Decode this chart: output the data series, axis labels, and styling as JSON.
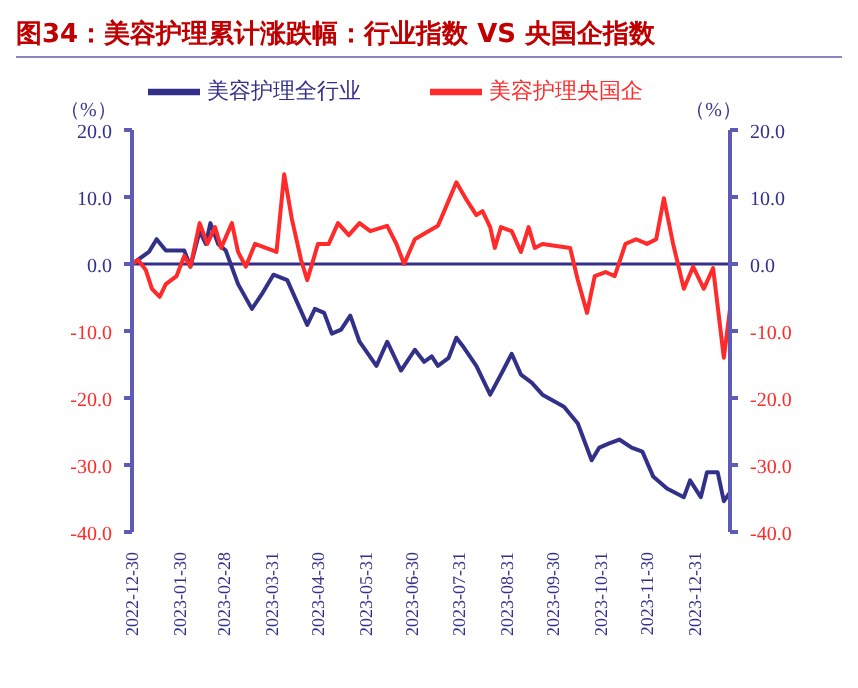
{
  "chart_data": {
    "type": "line",
    "title": "图34：美容护理累计涨跌幅：行业指数 VS 央国企指数",
    "ylabel": "（%）",
    "y2label": "（%）",
    "xlim": [
      "2022-12-30",
      "2024-01-23"
    ],
    "xticks": [
      "2022-12-30",
      "2023-01-30",
      "2023-02-28",
      "2023-03-31",
      "2023-04-30",
      "2023-05-31",
      "2023-06-30",
      "2023-07-31",
      "2023-08-31",
      "2023-09-30",
      "2023-10-31",
      "2023-11-30",
      "2023-12-31"
    ],
    "ylim": [
      -40,
      20
    ],
    "yticks": [
      {
        "value": -40,
        "label": "-40.0"
      },
      {
        "value": -30,
        "label": "-30.0"
      },
      {
        "value": -20,
        "label": "-20.0"
      },
      {
        "value": -10,
        "label": "-10.0"
      },
      {
        "value": 0,
        "label": "0.0"
      },
      {
        "value": 10,
        "label": "10.0"
      },
      {
        "value": 20,
        "label": "20.0"
      }
    ],
    "y2lim": [
      -40,
      20
    ],
    "y2ticks": [
      {
        "value": -40,
        "label": "-40.0"
      },
      {
        "value": -30,
        "label": "-30.0"
      },
      {
        "value": -20,
        "label": "-20.0"
      },
      {
        "value": -10,
        "label": "-10.0"
      },
      {
        "value": 0,
        "label": "0.0"
      },
      {
        "value": 10,
        "label": "10.0"
      },
      {
        "value": 20,
        "label": "20.0"
      }
    ],
    "ref_lines": [
      {
        "axis": "y",
        "value": 0,
        "color": "#33308a"
      }
    ],
    "legend": "top",
    "grid": false,
    "marker": "none",
    "line_style": "solid",
    "series": [
      {
        "name": "美容护理全行业",
        "color": "#33308a",
        "x": [
          "2022-12-30",
          "2023-01-10",
          "2023-01-15",
          "2023-01-21",
          "2023-02-02",
          "2023-02-06",
          "2023-02-12",
          "2023-02-16",
          "2023-02-19",
          "2023-02-24",
          "2023-03-01",
          "2023-03-09",
          "2023-03-18",
          "2023-03-25",
          "2023-04-01",
          "2023-04-10",
          "2023-04-16",
          "2023-04-23",
          "2023-04-28",
          "2023-05-04",
          "2023-05-09",
          "2023-05-15",
          "2023-05-21",
          "2023-05-27",
          "2023-06-07",
          "2023-06-14",
          "2023-06-23",
          "2023-07-02",
          "2023-07-08",
          "2023-07-13",
          "2023-07-17",
          "2023-07-24",
          "2023-07-29",
          "2023-08-02",
          "2023-08-11",
          "2023-08-20",
          "2023-08-27",
          "2023-09-03",
          "2023-09-09",
          "2023-09-16",
          "2023-09-23",
          "2023-10-07",
          "2023-10-16",
          "2023-10-25",
          "2023-10-30",
          "2023-11-05",
          "2023-11-12",
          "2023-11-20",
          "2023-11-27",
          "2023-12-04",
          "2023-12-13",
          "2023-12-24",
          "2023-12-28",
          "2024-01-04",
          "2024-01-08",
          "2024-01-15",
          "2024-01-19",
          "2024-01-23"
        ],
        "values": [
          0,
          1.8,
          3.7,
          2,
          2,
          -0.4,
          4.9,
          3,
          6.1,
          3,
          2,
          -3,
          -6.7,
          -4.3,
          -1.6,
          -2.4,
          -5.5,
          -9.1,
          -6.7,
          -7.3,
          -10.4,
          -9.8,
          -7.7,
          -11.6,
          -15.2,
          -11.6,
          -15.9,
          -12.8,
          -14.6,
          -13.8,
          -15.2,
          -14,
          -11,
          -12.2,
          -15.2,
          -19.5,
          -16.5,
          -13.4,
          -16.5,
          -17.7,
          -19.5,
          -21.3,
          -23.8,
          -29.3,
          -27.4,
          -26.8,
          -26.2,
          -27.4,
          -28,
          -31.7,
          -33.5,
          -34.8,
          -32.3,
          -34.8,
          -31.1,
          -31.1,
          -35.4,
          -34.1
        ]
      },
      {
        "name": "美容护理央国企",
        "color": "#ff2a2a",
        "axis": "y2",
        "x": [
          "2022-12-30",
          "2023-01-03",
          "2023-01-08",
          "2023-01-12",
          "2023-01-17",
          "2023-01-21",
          "2023-01-28",
          "2023-02-02",
          "2023-02-06",
          "2023-02-12",
          "2023-02-17",
          "2023-02-22",
          "2023-02-26",
          "2023-03-05",
          "2023-03-09",
          "2023-03-14",
          "2023-03-20",
          "2023-03-27",
          "2023-04-03",
          "2023-04-08",
          "2023-04-13",
          "2023-04-19",
          "2023-04-23",
          "2023-04-30",
          "2023-05-07",
          "2023-05-13",
          "2023-05-20",
          "2023-05-27",
          "2023-06-03",
          "2023-06-14",
          "2023-06-20",
          "2023-06-25",
          "2023-07-02",
          "2023-07-08",
          "2023-07-17",
          "2023-07-20",
          "2023-07-29",
          "2023-08-04",
          "2023-08-11",
          "2023-08-15",
          "2023-08-20",
          "2023-08-23",
          "2023-08-27",
          "2023-09-03",
          "2023-09-09",
          "2023-09-14",
          "2023-09-18",
          "2023-09-23",
          "2023-10-02",
          "2023-10-11",
          "2023-10-16",
          "2023-10-22",
          "2023-10-27",
          "2023-11-03",
          "2023-11-09",
          "2023-11-16",
          "2023-11-23",
          "2023-11-30",
          "2023-12-06",
          "2023-12-11",
          "2023-12-17",
          "2023-12-24",
          "2023-12-30",
          "2024-01-06",
          "2024-01-12",
          "2024-01-19",
          "2024-01-23"
        ],
        "values": [
          0,
          0.6,
          -0.9,
          -3.7,
          -4.9,
          -3,
          -1.8,
          1.2,
          -0.4,
          6.1,
          3,
          5.5,
          2.4,
          6.1,
          1.8,
          -0.4,
          3,
          2.4,
          1.8,
          13.4,
          6.7,
          0.6,
          -2.4,
          3,
          3,
          6.1,
          4.3,
          6.1,
          4.9,
          5.7,
          3,
          0,
          3.7,
          4.5,
          5.7,
          7.3,
          12.2,
          9.8,
          7.3,
          7.9,
          5.5,
          2.4,
          5.5,
          4.9,
          1.8,
          5.5,
          2.4,
          3,
          2.7,
          2.4,
          -2.4,
          -7.3,
          -1.8,
          -1.2,
          -1.8,
          3,
          3.7,
          3,
          3.7,
          9.8,
          3,
          -3.7,
          -0.4,
          -3.7,
          -0.6,
          -14,
          -6.7
        ]
      }
    ]
  }
}
